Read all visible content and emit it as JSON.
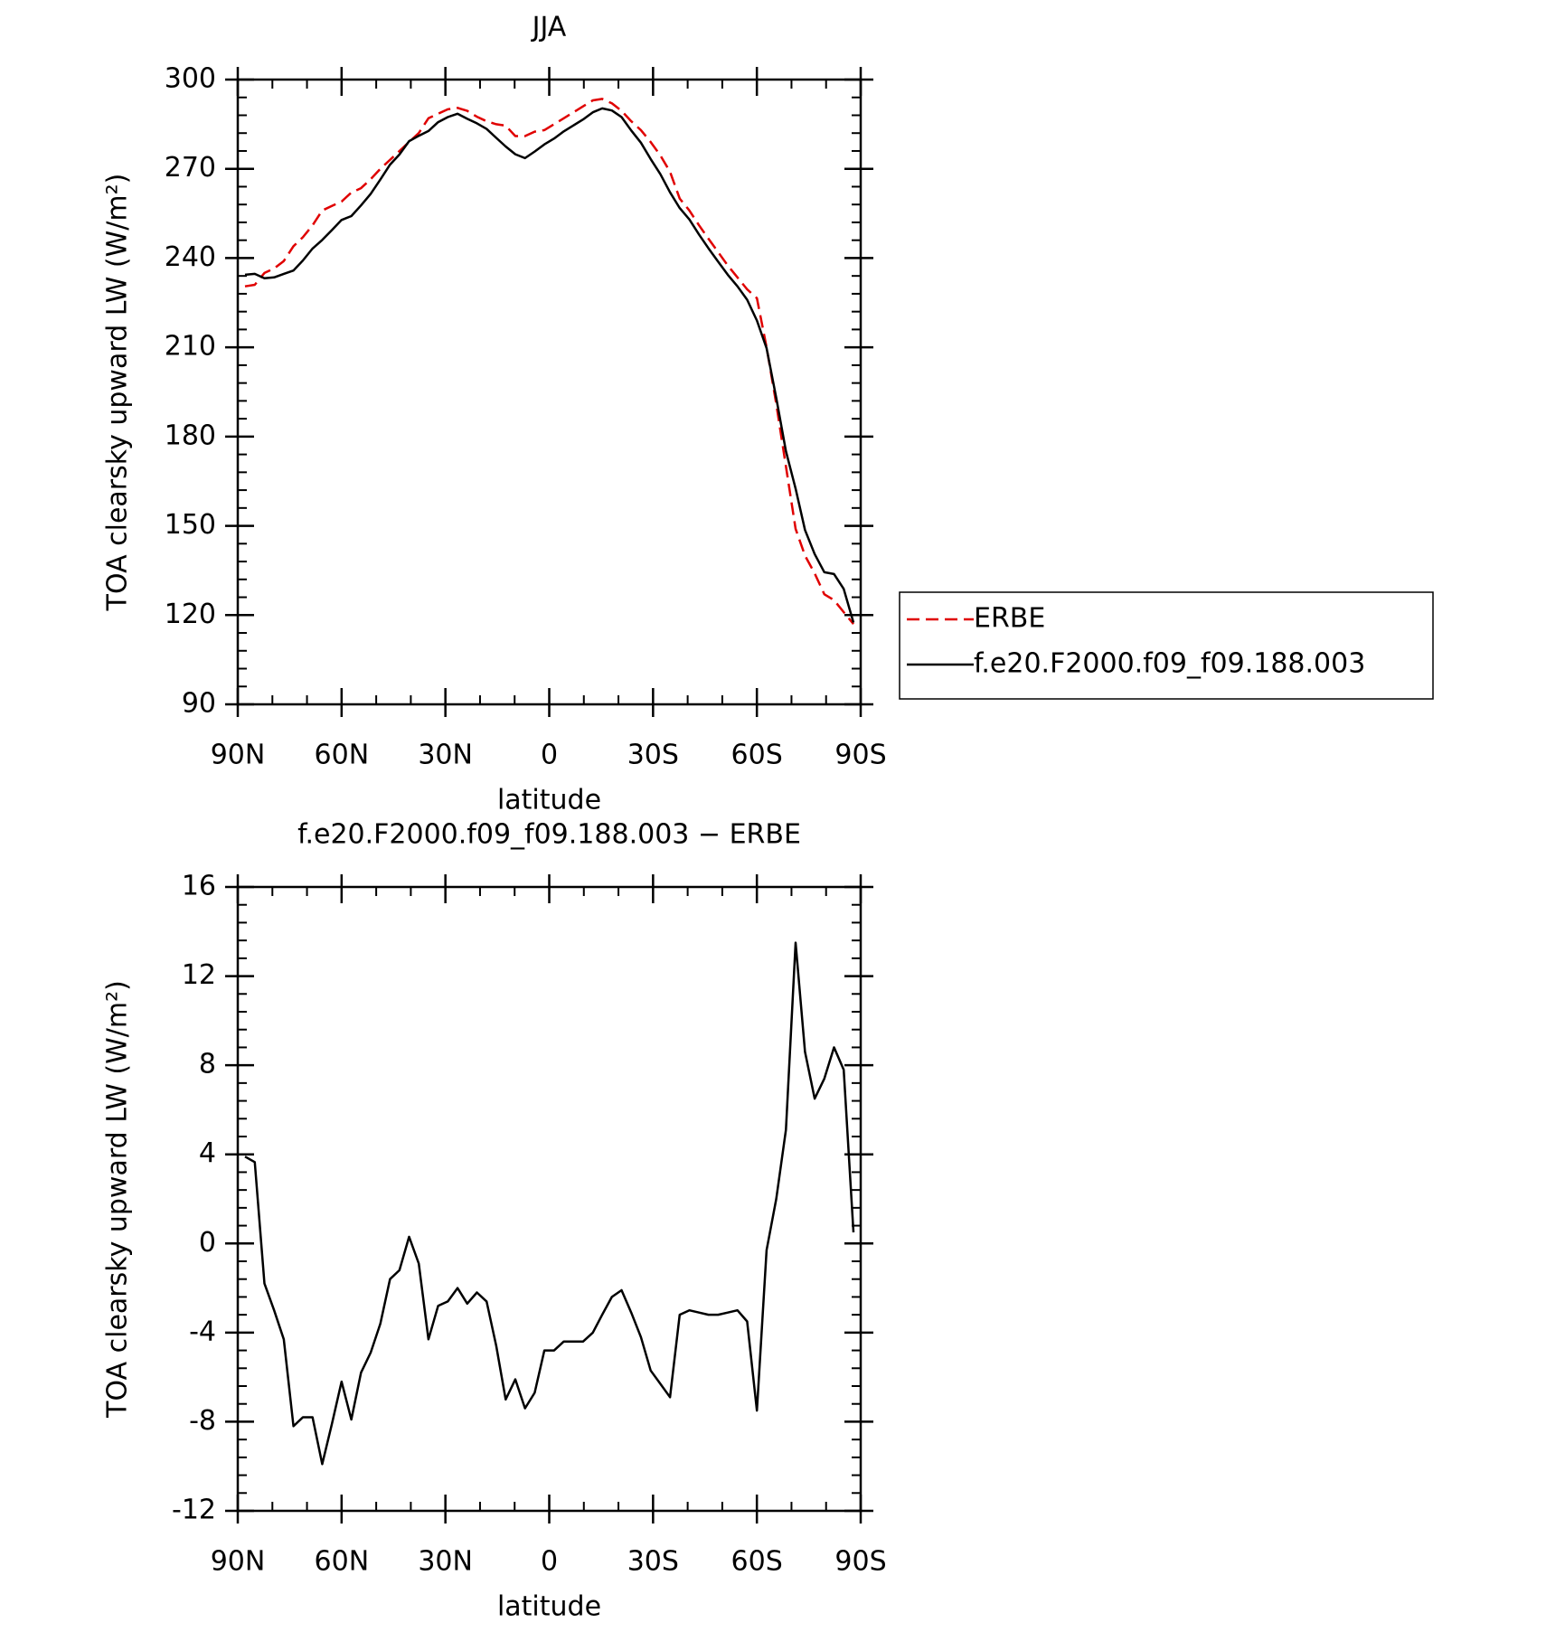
{
  "chart_data": [
    {
      "type": "line",
      "title": "JJA",
      "xlabel": "latitude",
      "ylabel": "TOA clearsky upward LW (W/m²)",
      "x": [
        87.9,
        85.1,
        82.3,
        79.5,
        76.7,
        73.9,
        71.2,
        68.4,
        65.6,
        62.8,
        60.0,
        57.2,
        54.4,
        51.6,
        48.8,
        46.0,
        43.3,
        40.5,
        37.7,
        34.9,
        32.1,
        29.3,
        26.5,
        23.7,
        20.9,
        18.1,
        15.3,
        12.6,
        9.8,
        7.0,
        4.2,
        1.4,
        -1.4,
        -4.2,
        -7.0,
        -9.8,
        -12.6,
        -15.3,
        -18.1,
        -20.9,
        -23.7,
        -26.5,
        -29.3,
        -32.1,
        -34.9,
        -37.7,
        -40.5,
        -43.3,
        -46.0,
        -48.8,
        -51.6,
        -54.4,
        -57.2,
        -60.0,
        -62.8,
        -65.6,
        -68.4,
        -71.2,
        -73.9,
        -76.7,
        -79.5,
        -82.3,
        -85.1,
        -87.9
      ],
      "series": [
        {
          "name": "ERBE",
          "color": "#e00000",
          "line_style": "dashed",
          "values": [
            230.5,
            231,
            235,
            236.5,
            239,
            244,
            247,
            251,
            256,
            257.5,
            259,
            262,
            263.5,
            266.5,
            270,
            273,
            276,
            279,
            282,
            287,
            288.5,
            290,
            290.5,
            289.5,
            287.5,
            286,
            285,
            284.5,
            281,
            281,
            282.5,
            283,
            285,
            287,
            289,
            291,
            293,
            293.5,
            292,
            289.5,
            286,
            283,
            279,
            274.5,
            269,
            260,
            256,
            251,
            246.5,
            242,
            237.5,
            233.5,
            229.5,
            226.5,
            210,
            191,
            170,
            149,
            140,
            134,
            127,
            125,
            121,
            117
          ]
        },
        {
          "name": "f.e20.F2000.f09_f09.188.003",
          "color": "#000000",
          "line_style": "solid",
          "values": [
            234.4,
            234.7,
            233.2,
            233.5,
            234.7,
            235.8,
            239.2,
            243.2,
            246.1,
            249.4,
            252.8,
            254.1,
            257.7,
            261.6,
            266.4,
            271.4,
            274.8,
            279.3,
            281.1,
            282.7,
            285.7,
            287.4,
            288.5,
            286.8,
            285.3,
            283.4,
            280.4,
            277.5,
            274.9,
            273.6,
            275.8,
            278.2,
            280.2,
            282.6,
            284.6,
            286.6,
            289.0,
            290.3,
            289.6,
            287.4,
            282.9,
            278.8,
            273.3,
            268.2,
            262.1,
            256.8,
            253.0,
            247.9,
            243.3,
            238.8,
            234.4,
            230.5,
            226.0,
            219.0,
            209.7,
            193.0,
            175.1,
            162.5,
            148.6,
            140.5,
            134.4,
            133.8,
            128.8,
            117.5
          ]
        }
      ],
      "xlim": [
        90,
        -90
      ],
      "xticks": [
        {
          "value": 90,
          "label": "90N"
        },
        {
          "value": 60,
          "label": "60N"
        },
        {
          "value": 30,
          "label": "30N"
        },
        0,
        {
          "value": -30,
          "label": "30S"
        },
        {
          "value": -60,
          "label": "60S"
        },
        {
          "value": -90,
          "label": "90S"
        }
      ],
      "ylim": [
        90,
        300
      ],
      "yticks": [
        90,
        120,
        150,
        180,
        210,
        240,
        270,
        300
      ],
      "legend": "right"
    },
    {
      "type": "line",
      "title": "f.e20.F2000.f09_f09.188.003 − ERBE",
      "xlabel": "latitude",
      "ylabel": "TOA clearsky upward LW (W/m²)",
      "x": [
        87.9,
        85.1,
        82.3,
        79.5,
        76.7,
        73.9,
        71.2,
        68.4,
        65.6,
        62.8,
        60.0,
        57.2,
        54.4,
        51.6,
        48.8,
        46.0,
        43.3,
        40.5,
        37.7,
        34.9,
        32.1,
        29.3,
        26.5,
        23.7,
        20.9,
        18.1,
        15.3,
        12.6,
        9.8,
        7.0,
        4.2,
        1.4,
        -1.4,
        -4.2,
        -7.0,
        -9.8,
        -12.6,
        -15.3,
        -18.1,
        -20.9,
        -23.7,
        -26.5,
        -29.3,
        -32.1,
        -34.9,
        -37.7,
        -40.5,
        -43.3,
        -46.0,
        -48.8,
        -51.6,
        -54.4,
        -57.2,
        -60.0,
        -62.8,
        -65.6,
        -68.4,
        -71.2,
        -73.9,
        -76.7,
        -79.5,
        -82.3,
        -85.1,
        -87.9
      ],
      "color": "#000000",
      "values": [
        3.9,
        3.65,
        -1.8,
        -3.0,
        -4.3,
        -8.2,
        -7.8,
        -7.8,
        -9.9,
        -8.1,
        -6.2,
        -7.9,
        -5.8,
        -4.9,
        -3.6,
        -1.6,
        -1.2,
        0.3,
        -0.9,
        -4.3,
        -2.8,
        -2.6,
        -2.0,
        -2.7,
        -2.2,
        -2.6,
        -4.6,
        -7.0,
        -6.1,
        -7.4,
        -6.7,
        -4.8,
        -4.8,
        -4.4,
        -4.4,
        -4.4,
        -4.0,
        -3.2,
        -2.4,
        -2.1,
        -3.1,
        -4.2,
        -5.7,
        -6.3,
        -6.9,
        -3.2,
        -3.0,
        -3.1,
        -3.2,
        -3.2,
        -3.1,
        -3.0,
        -3.5,
        -7.5,
        -0.3,
        2.0,
        5.1,
        13.5,
        8.6,
        6.5,
        7.4,
        8.8,
        7.8,
        0.5
      ],
      "xlim": [
        90,
        -90
      ],
      "xticks": [
        {
          "value": 90,
          "label": "90N"
        },
        {
          "value": 60,
          "label": "60N"
        },
        {
          "value": 30,
          "label": "30N"
        },
        0,
        {
          "value": -30,
          "label": "30S"
        },
        {
          "value": -60,
          "label": "60S"
        },
        {
          "value": -90,
          "label": "90S"
        }
      ],
      "ylim": [
        -12,
        16
      ],
      "yticks": [
        -12,
        -8,
        -4,
        0,
        4,
        8,
        12,
        16
      ]
    }
  ]
}
